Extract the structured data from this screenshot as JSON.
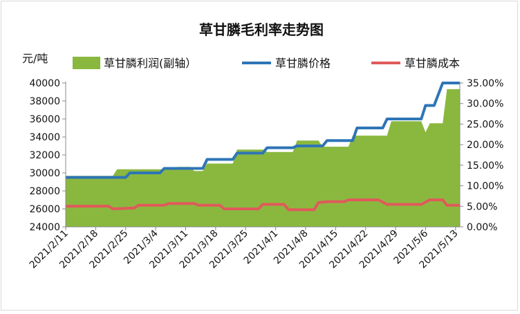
{
  "chart_data": {
    "type": "area+line",
    "title": "草甘膦毛利率走势图",
    "y_unit_label": "元/吨",
    "left_axis": {
      "ylim": [
        24000,
        40000
      ],
      "ticks": [
        24000,
        26000,
        28000,
        30000,
        32000,
        34000,
        36000,
        38000,
        40000
      ]
    },
    "right_axis": {
      "ylim": [
        0,
        35
      ],
      "ticks": [
        "0.00%",
        "5.00%",
        "10.00%",
        "15.00%",
        "20.00%",
        "25.00%",
        "30.00%",
        "35.00%"
      ]
    },
    "x_range": [
      "2021/2/11",
      "2021/5/14"
    ],
    "x_ticks": [
      "2021/2/11",
      "2021/2/18",
      "2021/2/25",
      "2021/3/4",
      "2021/3/11",
      "2021/3/18",
      "2021/3/25",
      "2021/4/1",
      "2021/4/8",
      "2021/4/15",
      "2021/4/22",
      "2021/4/29",
      "2021/5/6",
      "2021/5/13"
    ],
    "legend_position": "top",
    "grid": false,
    "series": [
      {
        "name": "草甘膦利润(副轴）",
        "kind": "area",
        "axis": "right",
        "color": "#8ab83f",
        "points": [
          [
            "2021/2/11",
            12.4
          ],
          [
            "2021/2/22",
            12.4
          ],
          [
            "2021/2/23",
            14.0
          ],
          [
            "2021/3/8",
            14.0
          ],
          [
            "2021/3/9",
            14.6
          ],
          [
            "2021/3/12",
            14.6
          ],
          [
            "2021/3/13",
            13.6
          ],
          [
            "2021/3/15",
            13.6
          ],
          [
            "2021/3/16",
            15.4
          ],
          [
            "2021/3/22",
            15.4
          ],
          [
            "2021/3/23",
            18.8
          ],
          [
            "2021/3/29",
            18.8
          ],
          [
            "2021/3/30",
            18.2
          ],
          [
            "2021/4/5",
            18.2
          ],
          [
            "2021/4/6",
            21.0
          ],
          [
            "2021/4/11",
            21.0
          ],
          [
            "2021/4/12",
            19.5
          ],
          [
            "2021/4/18",
            19.5
          ],
          [
            "2021/4/19",
            22.2
          ],
          [
            "2021/4/27",
            22.2
          ],
          [
            "2021/4/28",
            25.7
          ],
          [
            "2021/5/5",
            25.7
          ],
          [
            "2021/5/6",
            23.0
          ],
          [
            "2021/5/7",
            25.2
          ],
          [
            "2021/5/10",
            25.2
          ],
          [
            "2021/5/11",
            33.5
          ],
          [
            "2021/5/14",
            33.5
          ]
        ]
      },
      {
        "name": "草甘膦价格",
        "kind": "line",
        "axis": "left",
        "color": "#2e75b6",
        "points": [
          [
            "2021/2/11",
            29500
          ],
          [
            "2021/2/25",
            29500
          ],
          [
            "2021/2/26",
            30000
          ],
          [
            "2021/3/5",
            30000
          ],
          [
            "2021/3/6",
            30500
          ],
          [
            "2021/3/15",
            30500
          ],
          [
            "2021/3/16",
            31500
          ],
          [
            "2021/3/22",
            31500
          ],
          [
            "2021/3/23",
            32200
          ],
          [
            "2021/3/29",
            32200
          ],
          [
            "2021/3/30",
            32800
          ],
          [
            "2021/4/5",
            32800
          ],
          [
            "2021/4/6",
            33000
          ],
          [
            "2021/4/12",
            33000
          ],
          [
            "2021/4/13",
            33600
          ],
          [
            "2021/4/19",
            33600
          ],
          [
            "2021/4/20",
            35000
          ],
          [
            "2021/4/26",
            35000
          ],
          [
            "2021/4/27",
            36000
          ],
          [
            "2021/5/5",
            36000
          ],
          [
            "2021/5/6",
            37500
          ],
          [
            "2021/5/8",
            37500
          ],
          [
            "2021/5/10",
            40000
          ],
          [
            "2021/5/14",
            40000
          ]
        ]
      },
      {
        "name": "草甘膦成本",
        "kind": "line",
        "axis": "left",
        "color": "#e05a5a",
        "points": [
          [
            "2021/2/11",
            26300
          ],
          [
            "2021/2/21",
            26300
          ],
          [
            "2021/2/22",
            26000
          ],
          [
            "2021/2/27",
            26100
          ],
          [
            "2021/2/28",
            26400
          ],
          [
            "2021/3/6",
            26400
          ],
          [
            "2021/3/7",
            26600
          ],
          [
            "2021/3/13",
            26600
          ],
          [
            "2021/3/14",
            26400
          ],
          [
            "2021/3/19",
            26400
          ],
          [
            "2021/3/20",
            26000
          ],
          [
            "2021/3/28",
            26000
          ],
          [
            "2021/3/29",
            26500
          ],
          [
            "2021/4/3",
            26500
          ],
          [
            "2021/4/4",
            25900
          ],
          [
            "2021/4/10",
            25900
          ],
          [
            "2021/4/11",
            26700
          ],
          [
            "2021/4/13",
            26800
          ],
          [
            "2021/4/17",
            26800
          ],
          [
            "2021/4/18",
            27000
          ],
          [
            "2021/4/25",
            27000
          ],
          [
            "2021/4/27",
            26500
          ],
          [
            "2021/5/5",
            26500
          ],
          [
            "2021/5/7",
            27000
          ],
          [
            "2021/5/10",
            27000
          ],
          [
            "2021/5/11",
            26400
          ],
          [
            "2021/5/14",
            26400
          ]
        ]
      }
    ]
  }
}
